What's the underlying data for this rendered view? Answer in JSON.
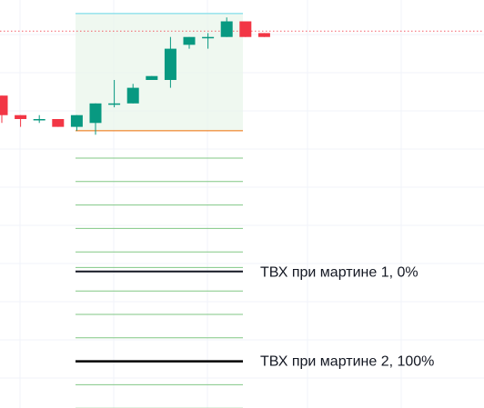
{
  "colors": {
    "background": "#ffffff",
    "grid": "#f0f3fa",
    "up": "#089981",
    "down": "#f23645",
    "zone_fill": "#e8f5e9",
    "zone_top_line": "#80deea",
    "zone_base_line": "#ef6c00",
    "level_line": "#81c784",
    "price_line": "#f23645",
    "marker_line": "#131722"
  },
  "annotations": [
    {
      "label": "ТВХ при мартине 1, 0%"
    },
    {
      "label": "ТВХ при мартине 2, 100%"
    }
  ],
  "chart_data": {
    "type": "candlestick",
    "title": "",
    "xlabel": "",
    "ylabel": "",
    "grid": true,
    "candles": [
      {
        "o": 36,
        "h": 36,
        "l": 29,
        "c": 31
      },
      {
        "o": 31,
        "h": 31,
        "l": 28,
        "c": 30
      },
      {
        "o": 30,
        "h": 31,
        "l": 29,
        "c": 30
      },
      {
        "o": 30,
        "h": 30,
        "l": 28,
        "c": 28
      },
      {
        "o": 28,
        "h": 31,
        "l": 27,
        "c": 31
      },
      {
        "o": 29,
        "h": 34,
        "l": 26,
        "c": 34
      },
      {
        "o": 34,
        "h": 40,
        "l": 33,
        "c": 34
      },
      {
        "o": 34,
        "h": 39,
        "l": 34,
        "c": 38
      },
      {
        "o": 40,
        "h": 41,
        "l": 40,
        "c": 41
      },
      {
        "o": 40,
        "h": 51,
        "l": 38,
        "c": 48
      },
      {
        "o": 49,
        "h": 51,
        "l": 48,
        "c": 51
      },
      {
        "o": 51,
        "h": 52,
        "l": 48,
        "c": 51
      },
      {
        "o": 51,
        "h": 56,
        "l": 51,
        "c": 55
      },
      {
        "o": 55,
        "h": 55,
        "l": 51,
        "c": 51
      },
      {
        "o": 52,
        "h": 52,
        "l": 51,
        "c": 51
      }
    ],
    "last_price": 52.5,
    "zone": {
      "top": 57,
      "base": 27
    },
    "levels": [
      20,
      14,
      8,
      2,
      -4,
      -8,
      -14,
      -20,
      -26,
      -32,
      -38,
      -44
    ],
    "marker_levels": [
      -9,
      -32
    ]
  }
}
